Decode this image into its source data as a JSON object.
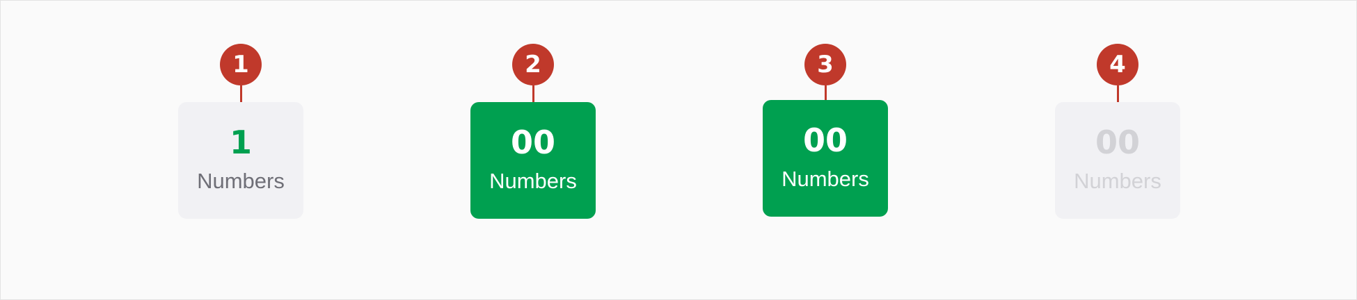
{
  "variants": [
    {
      "marker": "1",
      "value": "1",
      "label": "Numbers",
      "state": "default"
    },
    {
      "marker": "2",
      "value": "00",
      "label": "Numbers",
      "state": "selected"
    },
    {
      "marker": "3",
      "value": "00",
      "label": "Numbers",
      "state": "pressed"
    },
    {
      "marker": "4",
      "value": "00",
      "label": "Numbers",
      "state": "disabled"
    }
  ],
  "colors": {
    "accent": "#00a050",
    "marker": "#c0392b",
    "card_bg": "#f1f1f4",
    "label_default": "#6f6f77",
    "disabled_text": "#d2d2d6",
    "page_bg": "#fafafa"
  }
}
